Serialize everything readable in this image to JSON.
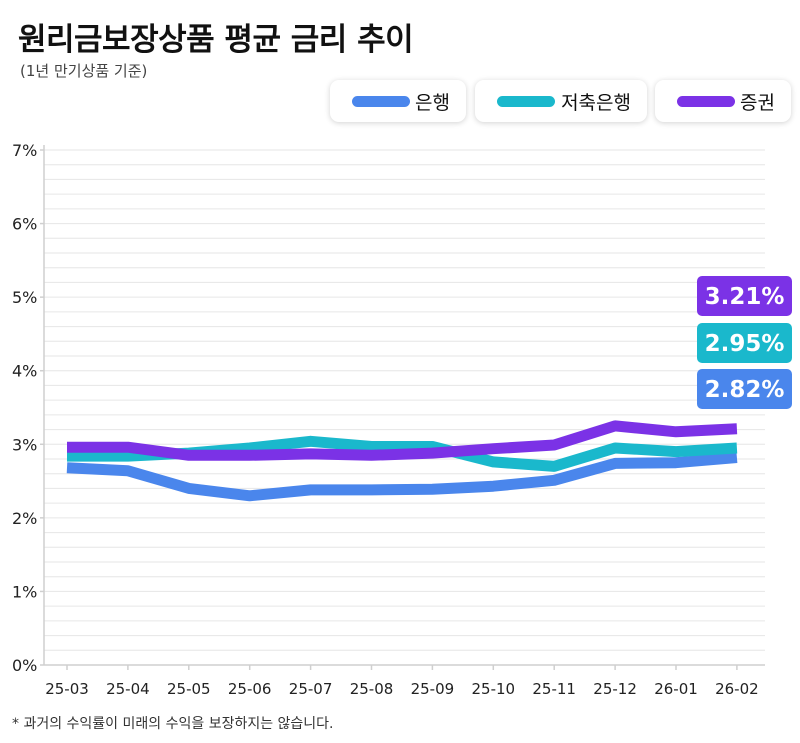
{
  "title": "원리금보장상품 평균 금리 추이",
  "subtitle": "(1년 만기상품 기준)",
  "footnote": "* 과거의 수익률이 미래의 수익을 보장하지는 않습니다.",
  "colors": {
    "bank": "#4a86ec",
    "savings": "#1ab8cc",
    "securities": "#7b32e6",
    "grid": "#e6e6e6",
    "axis": "#cfcfcf"
  },
  "chart_data": {
    "type": "line",
    "title": "원리금보장상품 평균 금리 추이",
    "subtitle": "(1년 만기상품 기준)",
    "xlabel": "",
    "ylabel": "",
    "categories": [
      "25-03",
      "25-04",
      "25-05",
      "25-06",
      "25-07",
      "25-08",
      "25-09",
      "25-10",
      "25-11",
      "25-12",
      "26-01",
      "26-02"
    ],
    "ylim": [
      0,
      7
    ],
    "y_ticks": [
      {
        "value": 0,
        "label": "0%"
      },
      {
        "value": 1,
        "label": "1%"
      },
      {
        "value": 2,
        "label": "2%"
      },
      {
        "value": 3,
        "label": "3%"
      },
      {
        "value": 4,
        "label": "4%"
      },
      {
        "value": 5,
        "label": "5%"
      },
      {
        "value": 6,
        "label": "6%"
      },
      {
        "value": 7,
        "label": "7%"
      }
    ],
    "legend_position": "top-right",
    "series": [
      {
        "key": "bank",
        "name": "은행",
        "values": [
          2.68,
          2.64,
          2.4,
          2.3,
          2.38,
          2.38,
          2.39,
          2.43,
          2.51,
          2.74,
          2.75,
          2.82
        ],
        "end_label": "2.82%"
      },
      {
        "key": "savings",
        "name": "저축은행",
        "values": [
          2.84,
          2.84,
          2.88,
          2.95,
          3.04,
          2.97,
          2.97,
          2.76,
          2.7,
          2.95,
          2.9,
          2.95
        ],
        "end_label": "2.95%"
      },
      {
        "key": "securities",
        "name": "증권",
        "values": [
          2.96,
          2.96,
          2.85,
          2.85,
          2.87,
          2.85,
          2.88,
          2.94,
          2.99,
          3.25,
          3.17,
          3.21
        ],
        "end_label": "3.21%"
      }
    ]
  }
}
